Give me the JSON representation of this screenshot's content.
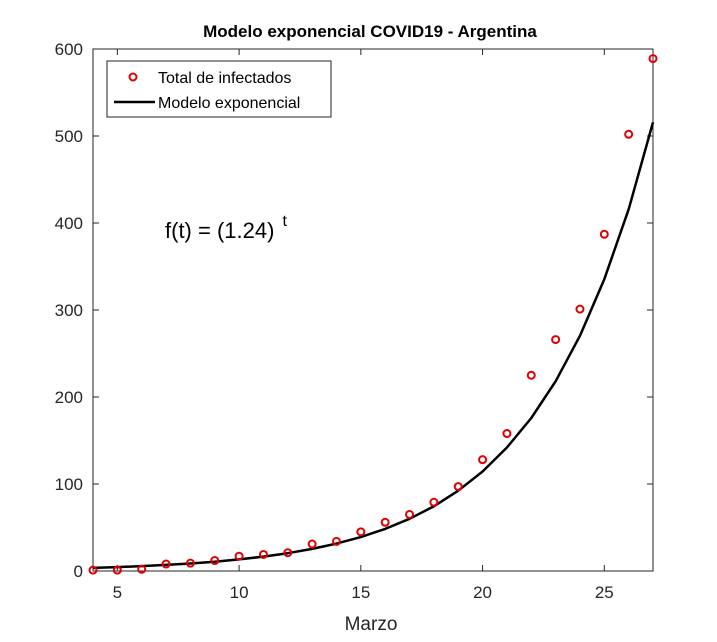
{
  "chart_data": {
    "type": "scatter",
    "title": "Modelo exponencial COVID19 - Argentina",
    "xlabel": "Marzo",
    "ylabel": "",
    "xlim": [
      4,
      27
    ],
    "ylim": [
      0,
      600
    ],
    "x_ticks": [
      5,
      10,
      15,
      20,
      25
    ],
    "y_ticks": [
      0,
      100,
      200,
      300,
      400,
      500,
      600
    ],
    "grid": false,
    "legend_position": "top-left",
    "annotation": {
      "base": "f(t) = (1.24)",
      "exponent": "t"
    },
    "series": [
      {
        "name": "Total de infectados",
        "style": "markers",
        "marker": "circle",
        "color": "#e00000",
        "x": [
          4,
          5,
          6,
          7,
          8,
          9,
          10,
          11,
          12,
          13,
          14,
          15,
          16,
          17,
          18,
          19,
          20,
          21,
          22,
          23,
          24,
          25,
          26,
          27
        ],
        "y": [
          1,
          1,
          2,
          8,
          9,
          12,
          17,
          19,
          21,
          31,
          34,
          45,
          56,
          65,
          79,
          97,
          128,
          158,
          225,
          266,
          301,
          387,
          502,
          589
        ]
      },
      {
        "name": "Modelo exponencial",
        "style": "line",
        "color": "#000000",
        "x": [
          4,
          5,
          6,
          7,
          8,
          9,
          10,
          11,
          12,
          13,
          14,
          15,
          16,
          17,
          18,
          19,
          20,
          21,
          22,
          23,
          24,
          25,
          26,
          27
        ],
        "y": [
          3.6,
          4.5,
          5.6,
          7.0,
          8.6,
          10.7,
          13.3,
          16.5,
          20.5,
          25.4,
          31.5,
          39.0,
          48.4,
          60.0,
          74.4,
          92.3,
          114.4,
          141.9,
          175.9,
          218.1,
          270.5,
          335.4,
          415.9,
          515.7
        ]
      }
    ]
  }
}
